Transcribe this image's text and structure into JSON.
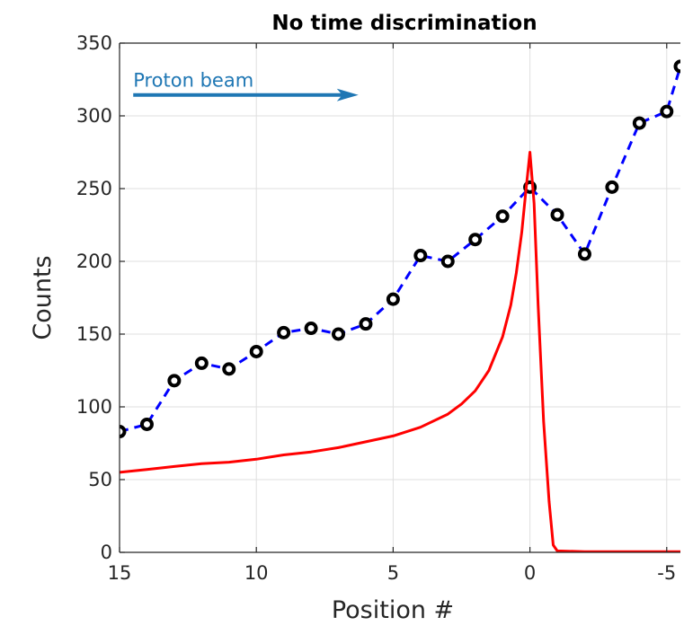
{
  "chart_data": {
    "type": "line",
    "title": "No time discrimination",
    "xlabel": "Position #",
    "ylabel": "Counts",
    "xlim": [
      15,
      -5.5
    ],
    "x_reversed": true,
    "ylim": [
      0,
      350
    ],
    "xticks": [
      15,
      10,
      5,
      0,
      -5
    ],
    "xtick_labels": [
      "15",
      "10",
      "5",
      "0",
      "-5"
    ],
    "yticks": [
      0,
      50,
      100,
      150,
      200,
      250,
      300,
      350
    ],
    "ytick_labels": [
      "0",
      "50",
      "100",
      "150",
      "200",
      "250",
      "300",
      "350"
    ],
    "grid": true,
    "annotation": {
      "text": "Proton beam",
      "arrow_from_x": 14.5,
      "arrow_to_x": 6.4,
      "y": 315,
      "color": "#1f77b4"
    },
    "series": [
      {
        "style": "dashed-markers",
        "color": "#0000ff",
        "marker_color": "#000000",
        "x": [
          15,
          14,
          13,
          12,
          11,
          10,
          9,
          8,
          7,
          6,
          5,
          4,
          3,
          2,
          1,
          0,
          -1,
          -2,
          -3,
          -4,
          -5,
          -5.5
        ],
        "y": [
          83,
          88,
          118,
          130,
          126,
          138,
          151,
          154,
          150,
          157,
          174,
          204,
          200,
          215,
          231,
          251,
          232,
          205,
          251,
          295,
          303,
          334
        ]
      },
      {
        "style": "solid",
        "color": "#ff0000",
        "x": [
          15,
          14,
          13,
          12,
          11,
          10,
          9,
          8,
          7,
          6,
          5,
          4,
          3,
          2.5,
          2,
          1.5,
          1,
          0.7,
          0.5,
          0.3,
          0.15,
          0,
          -0.15,
          -0.3,
          -0.5,
          -0.7,
          -0.85,
          -1,
          -2,
          -3,
          -4,
          -5,
          -5.5
        ],
        "y": [
          55,
          57,
          59,
          61,
          62,
          64,
          67,
          69,
          72,
          76,
          80,
          86,
          95,
          102,
          111,
          125,
          148,
          170,
          192,
          220,
          248,
          275,
          240,
          170,
          90,
          35,
          5,
          1,
          0.5,
          0.5,
          0.5,
          0.5,
          0.5
        ]
      }
    ]
  }
}
